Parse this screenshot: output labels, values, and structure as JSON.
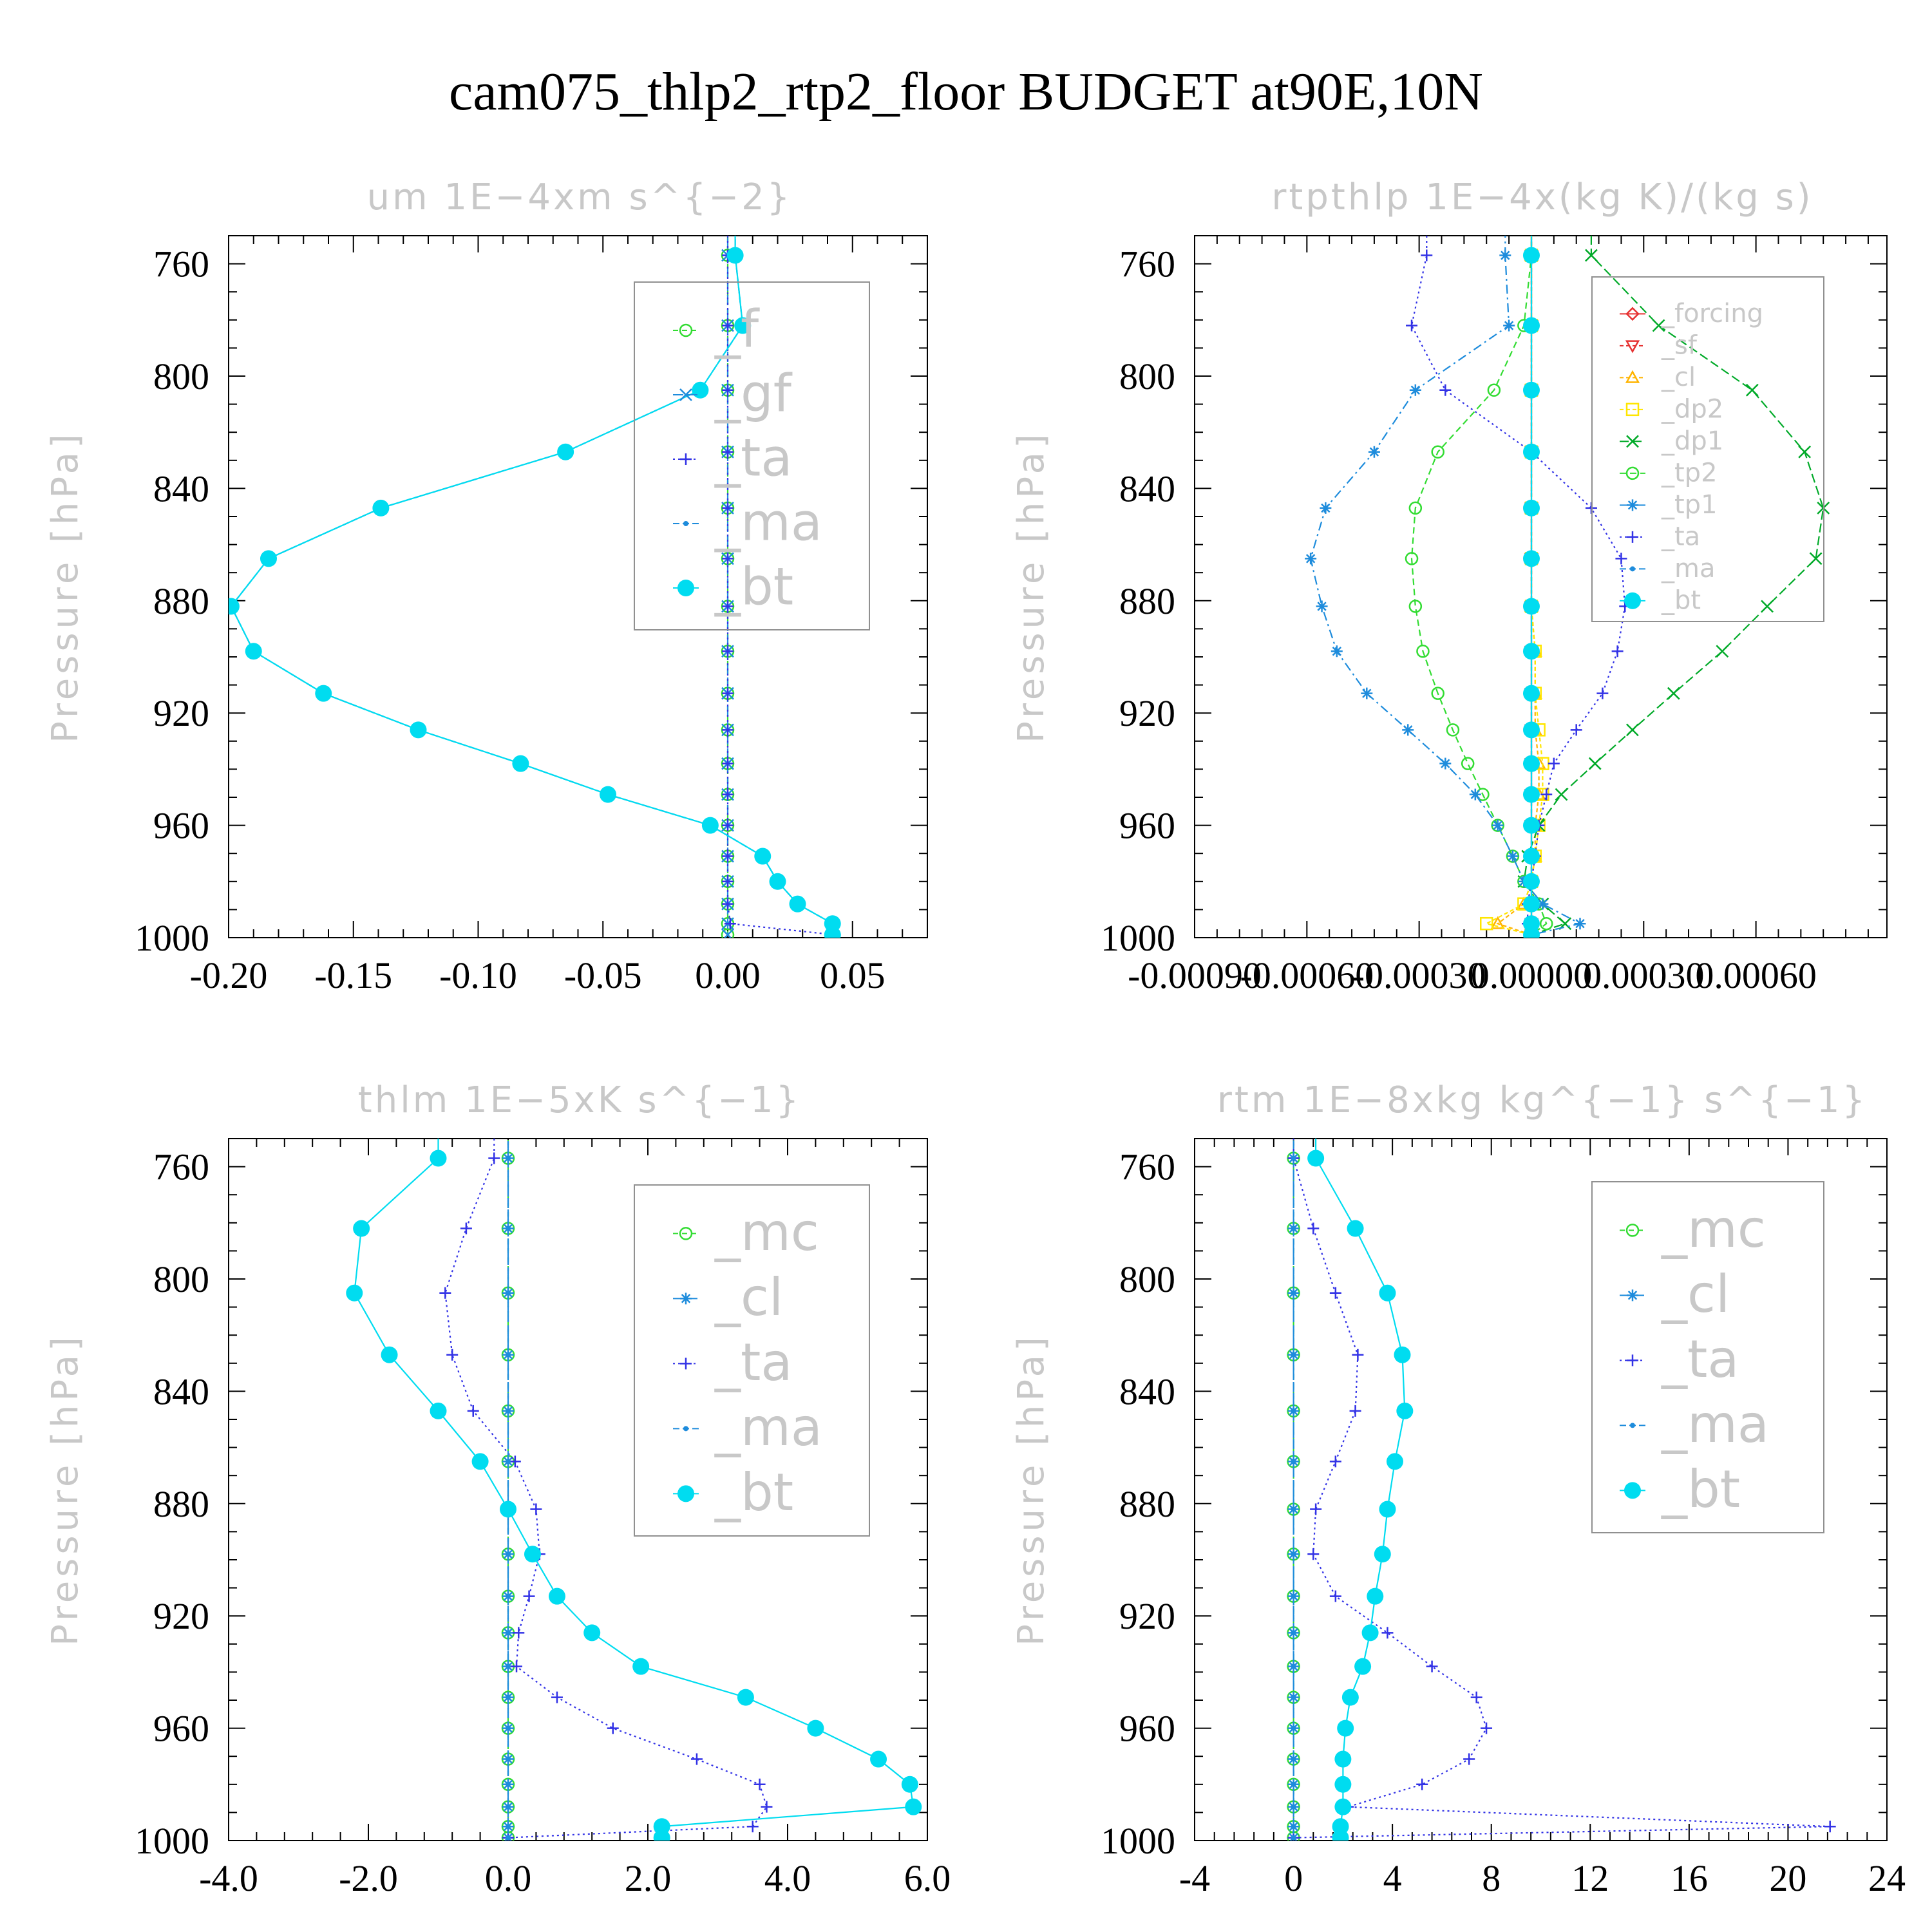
{
  "title": "cam075_thlp2_rtp2_floor  BUDGET at90E,10N",
  "colors": {
    "green": "#32dc32",
    "blue": "#3232e6",
    "cyan": "#00dcf0",
    "teal": "#1e8cdc",
    "red": "#e63232",
    "orange": "#ffb400",
    "yellow": "#ffe600",
    "darkgreen": "#00aa28",
    "steel": "#5a8cc8",
    "legend_text": "#c8c8c8",
    "frame": "#000000"
  },
  "chart_data": [
    {
      "type": "line",
      "title": "um   1E−4xm s^{−2}",
      "ylabel": "Pressure [hPa]",
      "xlim": [
        -0.2,
        0.08
      ],
      "ylim": [
        1000,
        750
      ],
      "y_inverted": true,
      "xticks": [
        -0.2,
        -0.15,
        -0.1,
        -0.05,
        0.0,
        0.05
      ],
      "xtick_labels": [
        "-0.20",
        "-0.15",
        "-0.10",
        "-0.05",
        "0.00",
        "0.05"
      ],
      "yticks": [
        760,
        800,
        840,
        880,
        920,
        960,
        1000
      ],
      "ytick_labels": [
        "760",
        "800",
        "840",
        "880",
        "920",
        "960",
        "1000"
      ],
      "legend_position": "top-right",
      "legend_font": 80,
      "pressure": [
        757,
        782,
        805,
        827,
        847,
        865,
        882,
        898,
        913,
        926,
        938,
        949,
        960,
        971,
        980,
        988,
        995,
        999
      ],
      "series": [
        {
          "name": "_f",
          "color": "#32dc32",
          "marker": "circle-open",
          "dash": "8,6",
          "values": [
            0,
            0,
            0,
            0,
            0,
            0,
            0,
            0,
            0,
            0,
            0,
            0,
            0,
            0,
            0,
            0,
            0,
            0
          ]
        },
        {
          "name": "_gf",
          "color": "#1e8cdc",
          "marker": "x",
          "dash": "16,6",
          "values": [
            0,
            0,
            0,
            0,
            0,
            0,
            0,
            0,
            0,
            0,
            0,
            0,
            0,
            0,
            0,
            0,
            0,
            0
          ]
        },
        {
          "name": "_ta",
          "color": "#3232e6",
          "marker": "plus",
          "dash": "3,5",
          "values": [
            0,
            0,
            0,
            0,
            0,
            0,
            0,
            0,
            0,
            0,
            0,
            0,
            0,
            0,
            0,
            0,
            0.001,
            0.043
          ]
        },
        {
          "name": "_ma",
          "color": "#1e8cdc",
          "marker": "dot-small",
          "dash": "10,5",
          "values": [
            0.003,
            0.006,
            -0.011,
            -0.065,
            -0.139,
            -0.184,
            -0.199,
            -0.19,
            -0.162,
            -0.124,
            -0.083,
            -0.048,
            -0.007,
            0.014,
            0.02,
            0.028,
            0.042,
            0.042
          ]
        },
        {
          "name": "_bt",
          "color": "#00dcf0",
          "marker": "dot",
          "dash": "",
          "values": [
            0.003,
            0.006,
            -0.011,
            -0.065,
            -0.139,
            -0.184,
            -0.199,
            -0.19,
            -0.162,
            -0.124,
            -0.083,
            -0.048,
            -0.007,
            0.014,
            0.02,
            0.028,
            0.042,
            0.042
          ]
        }
      ]
    },
    {
      "type": "line",
      "title": "rtpthlp   1E−4x(kg K)/(kg s)",
      "ylabel": "Pressure [hPa]",
      "xlim": [
        -0.0009,
        0.00095
      ],
      "ylim": [
        1000,
        750
      ],
      "y_inverted": true,
      "xticks": [
        -0.0009,
        -0.0006,
        -0.0003,
        0.0,
        0.0003,
        0.0006
      ],
      "xtick_labels": [
        "-0.00090",
        "-0.00060",
        "-0.00030",
        "0.00000",
        "0.00030",
        "0.00060"
      ],
      "yticks": [
        760,
        800,
        840,
        880,
        920,
        960,
        1000
      ],
      "ytick_labels": [
        "760",
        "800",
        "840",
        "880",
        "920",
        "960",
        "1000"
      ],
      "legend_position": "top-right",
      "legend_font": 40,
      "pressure": [
        757,
        782,
        805,
        827,
        847,
        865,
        882,
        898,
        913,
        926,
        938,
        949,
        960,
        971,
        980,
        988,
        995,
        999
      ],
      "series": [
        {
          "name": "_forcing",
          "color": "#e63232",
          "marker": "diamond-open",
          "dash": "",
          "values": [
            0,
            0,
            0,
            0,
            0,
            0,
            0,
            0,
            0,
            0,
            0,
            0,
            0,
            0,
            0,
            0,
            0,
            0
          ]
        },
        {
          "name": "_sf",
          "color": "#e63232",
          "marker": "triangle-down-open",
          "dash": "6,4",
          "values": [
            0,
            0,
            0,
            0,
            0,
            0,
            0,
            0,
            0,
            0,
            0,
            0,
            0,
            0,
            0,
            0,
            0,
            0
          ]
        },
        {
          "name": "_cl",
          "color": "#ffb400",
          "marker": "triangle-open",
          "dash": "6,4",
          "values": [
            0,
            0,
            0,
            0,
            0,
            0,
            0,
            1e-05,
            1e-05,
            1e-05,
            2e-05,
            2e-05,
            1e-05,
            1e-05,
            0.0,
            -2e-05,
            -9e-05,
            0
          ]
        },
        {
          "name": "_dp2",
          "color": "#ffe600",
          "marker": "square-open",
          "dash": "6,4",
          "values": [
            0,
            0,
            0,
            0,
            0,
            0,
            0,
            1e-05,
            1e-05,
            2e-05,
            3e-05,
            3e-05,
            2e-05,
            1e-05,
            0,
            -2e-05,
            -0.00012,
            0
          ]
        },
        {
          "name": "_dp1",
          "color": "#00aa28",
          "marker": "x",
          "dash": "14,6",
          "values": [
            0.00016,
            0.00034,
            0.00059,
            0.00073,
            0.00078,
            0.00076,
            0.00063,
            0.00051,
            0.00038,
            0.00027,
            0.00017,
            8e-05,
            2e-05,
            -1e-05,
            -2e-05,
            3e-05,
            9e-05,
            0
          ]
        },
        {
          "name": "_tp2",
          "color": "#32dc32",
          "marker": "circle-open",
          "dash": "10,6",
          "values": [
            0,
            -2e-05,
            -0.0001,
            -0.00025,
            -0.00031,
            -0.00032,
            -0.00031,
            -0.00029,
            -0.00025,
            -0.00021,
            -0.00017,
            -0.00013,
            -9e-05,
            -5e-05,
            -2e-05,
            2e-05,
            4e-05,
            0
          ]
        },
        {
          "name": "_tp1",
          "color": "#1e8cdc",
          "marker": "star",
          "dash": "14,6,3,6",
          "values": [
            -7e-05,
            -6e-05,
            -0.00031,
            -0.00042,
            -0.00055,
            -0.00059,
            -0.00056,
            -0.00052,
            -0.00044,
            -0.00033,
            -0.00023,
            -0.00015,
            -9e-05,
            -5e-05,
            -2e-05,
            3e-05,
            0.00013,
            0
          ]
        },
        {
          "name": "_ta",
          "color": "#3232e6",
          "marker": "plus",
          "dash": "3,5",
          "values": [
            -0.00028,
            -0.00032,
            -0.00023,
            0,
            0.00016,
            0.00024,
            0.00025,
            0.00023,
            0.00019,
            0.00012,
            6e-05,
            4e-05,
            2e-05,
            1e-05,
            0,
            -1e-05,
            -1e-05,
            0
          ]
        },
        {
          "name": "_ma",
          "color": "#1e8cdc",
          "marker": "dot-small",
          "dash": "10,5",
          "values": [
            0,
            0,
            0,
            0,
            0,
            0,
            0,
            0,
            0,
            0,
            0,
            0,
            0,
            0,
            0,
            0,
            0,
            0
          ]
        },
        {
          "name": "_bt",
          "color": "#00dcf0",
          "marker": "dot",
          "dash": "",
          "values": [
            0,
            0,
            0,
            0,
            0,
            0,
            0,
            0,
            0,
            0,
            0,
            0,
            0,
            0,
            0,
            0,
            0,
            0
          ]
        }
      ]
    },
    {
      "type": "line",
      "title": "thlm   1E−5xK s^{−1}",
      "ylabel": "Pressure [hPa]",
      "xlim": [
        -4.0,
        6.0
      ],
      "ylim": [
        1000,
        750
      ],
      "y_inverted": true,
      "xticks": [
        -4,
        -2,
        0,
        2,
        4,
        6
      ],
      "xtick_labels": [
        "-4.0",
        "-2.0",
        "0.0",
        "2.0",
        "4.0",
        "6.0"
      ],
      "yticks": [
        760,
        800,
        840,
        880,
        920,
        960,
        1000
      ],
      "ytick_labels": [
        "760",
        "800",
        "840",
        "880",
        "920",
        "960",
        "1000"
      ],
      "legend_position": "top-right",
      "legend_font": 80,
      "pressure": [
        757,
        782,
        805,
        827,
        847,
        865,
        882,
        898,
        913,
        926,
        938,
        949,
        960,
        971,
        980,
        988,
        995,
        999
      ],
      "series": [
        {
          "name": "_mc",
          "color": "#32dc32",
          "marker": "circle-open",
          "dash": "8,6",
          "values": [
            0,
            0,
            0,
            0,
            0,
            0,
            0,
            0,
            0,
            0,
            0,
            0,
            0,
            0,
            0,
            0,
            0,
            0
          ]
        },
        {
          "name": "_cl",
          "color": "#1e8cdc",
          "marker": "star",
          "dash": "16,6",
          "values": [
            0,
            0,
            0,
            0,
            0,
            0,
            0,
            0,
            0,
            0,
            0,
            0,
            0,
            0,
            0,
            0,
            0,
            0
          ]
        },
        {
          "name": "_ta",
          "color": "#3232e6",
          "marker": "plus",
          "dash": "3,5",
          "values": [
            -0.2,
            -0.6,
            -0.9,
            -0.8,
            -0.5,
            0.1,
            0.4,
            0.45,
            0.3,
            0.15,
            0.12,
            0.7,
            1.5,
            2.7,
            3.6,
            3.7,
            3.5,
            0.0
          ]
        },
        {
          "name": "_ma",
          "color": "#1e8cdc",
          "marker": "dot-small",
          "dash": "10,5",
          "values": [
            0,
            0,
            0,
            0,
            0,
            0,
            0,
            0,
            0,
            0,
            0,
            0,
            0,
            0,
            0,
            0,
            0,
            0
          ]
        },
        {
          "name": "_bt",
          "color": "#00dcf0",
          "marker": "dot",
          "dash": "",
          "values": [
            -1.0,
            -2.1,
            -2.2,
            -1.7,
            -1.0,
            -0.4,
            0.0,
            0.35,
            0.7,
            1.2,
            1.9,
            3.4,
            4.4,
            5.3,
            5.75,
            5.8,
            2.2,
            2.2
          ]
        }
      ]
    },
    {
      "type": "line",
      "title": "rtm   1E−8xkg kg^{−1} s^{−1}",
      "ylabel": "Pressure [hPa]",
      "xlim": [
        -4,
        24
      ],
      "ylim": [
        1000,
        750
      ],
      "y_inverted": true,
      "xticks": [
        -4,
        0,
        4,
        8,
        12,
        16,
        20,
        24
      ],
      "xtick_labels": [
        "-4",
        "0",
        "4",
        "8",
        "12",
        "16",
        "20",
        "24"
      ],
      "yticks": [
        760,
        800,
        840,
        880,
        920,
        960,
        1000
      ],
      "ytick_labels": [
        "760",
        "800",
        "840",
        "880",
        "920",
        "960",
        "1000"
      ],
      "legend_position": "top-right",
      "legend_font": 80,
      "pressure": [
        757,
        782,
        805,
        827,
        847,
        865,
        882,
        898,
        913,
        926,
        938,
        949,
        960,
        971,
        980,
        988,
        995,
        999
      ],
      "series": [
        {
          "name": "_mc",
          "color": "#32dc32",
          "marker": "circle-open",
          "dash": "8,6",
          "values": [
            0,
            0,
            0,
            0,
            0,
            0,
            0,
            0,
            0,
            0,
            0,
            0,
            0,
            0,
            0,
            0,
            0,
            0
          ]
        },
        {
          "name": "_cl",
          "color": "#1e8cdc",
          "marker": "star",
          "dash": "16,6",
          "values": [
            0,
            0,
            0,
            0,
            0,
            0,
            0,
            0,
            0,
            0,
            0,
            0,
            0,
            0,
            0,
            0,
            0,
            0
          ]
        },
        {
          "name": "_ta",
          "color": "#3232e6",
          "marker": "plus",
          "dash": "3,5",
          "values": [
            0,
            0.8,
            1.7,
            2.6,
            2.5,
            1.7,
            0.9,
            0.8,
            1.7,
            3.8,
            5.6,
            7.4,
            7.8,
            7.1,
            5.2,
            2.2,
            21.7,
            0
          ]
        },
        {
          "name": "_ma",
          "color": "#1e8cdc",
          "marker": "dot-small",
          "dash": "10,5",
          "values": [
            0,
            0,
            0,
            0,
            0,
            0,
            0,
            0,
            0,
            0,
            0,
            0,
            0,
            0,
            0,
            0,
            0,
            0
          ]
        },
        {
          "name": "_bt",
          "color": "#00dcf0",
          "marker": "dot",
          "dash": "",
          "values": [
            0.9,
            2.5,
            3.8,
            4.4,
            4.5,
            4.1,
            3.8,
            3.6,
            3.3,
            3.1,
            2.8,
            2.3,
            2.1,
            2.0,
            2.0,
            2.0,
            1.9,
            1.9
          ]
        }
      ]
    }
  ]
}
